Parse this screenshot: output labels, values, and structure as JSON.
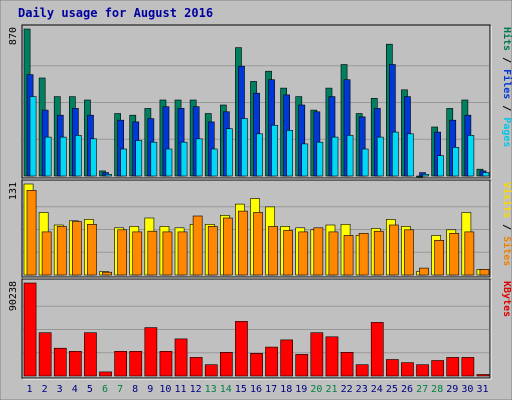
{
  "chart_data": {
    "type": "bar",
    "title": "Daily usage for August 2016",
    "categories": [
      "1",
      "2",
      "3",
      "4",
      "5",
      "6",
      "7",
      "8",
      "9",
      "10",
      "11",
      "12",
      "13",
      "14",
      "15",
      "16",
      "17",
      "18",
      "19",
      "20",
      "21",
      "22",
      "23",
      "24",
      "25",
      "26",
      "27",
      "28",
      "29",
      "30",
      "31"
    ],
    "weekend_days": [
      "6",
      "7",
      "13",
      "14",
      "20",
      "21",
      "27",
      "28"
    ],
    "panels": [
      {
        "name": "hits-files-pages",
        "ymax_label": "870",
        "ylim": [
          0,
          870
        ],
        "side_labels": [
          {
            "text": "Pages",
            "color": "#00c8e8"
          },
          {
            "text": " / ",
            "color": "#000000"
          },
          {
            "text": "Files",
            "color": "#0038d8"
          },
          {
            "text": " / ",
            "color": "#000000"
          },
          {
            "text": "Hits",
            "color": "#007850"
          }
        ],
        "series": [
          {
            "name": "Hits",
            "color": "#008060",
            "values": [
              870,
              580,
              470,
              470,
              450,
              30,
              370,
              360,
              400,
              450,
              450,
              450,
              370,
              420,
              760,
              560,
              620,
              520,
              470,
              390,
              520,
              660,
              370,
              460,
              780,
              510,
              0,
              290,
              400,
              450,
              40
            ]
          },
          {
            "name": "Files",
            "color": "#0038d8",
            "values": [
              600,
              390,
              360,
              400,
              360,
              20,
              330,
              320,
              340,
              410,
              400,
              410,
              320,
              380,
              650,
              490,
              570,
              480,
              420,
              380,
              470,
              570,
              350,
              400,
              660,
              470,
              20,
              260,
              330,
              360,
              30
            ]
          },
          {
            "name": "Pages",
            "color": "#00d8f8",
            "values": [
              470,
              230,
              230,
              240,
              220,
              10,
              160,
              210,
              200,
              160,
              200,
              220,
              160,
              280,
              340,
              250,
              300,
              270,
              190,
              200,
              230,
              240,
              160,
              230,
              260,
              250,
              10,
              120,
              170,
              240,
              20
            ]
          }
        ]
      },
      {
        "name": "visits-sites",
        "ymax_label": "131",
        "ylim": [
          0,
          131
        ],
        "side_labels": [
          {
            "text": "Sites",
            "color": "#f08000"
          },
          {
            "text": " / ",
            "color": "#000000"
          },
          {
            "text": "Visits",
            "color": "#f8d800"
          }
        ],
        "series": [
          {
            "name": "Visits",
            "color": "#ffff00",
            "values": [
              131,
              90,
              72,
              78,
              80,
              5,
              68,
              70,
              82,
              70,
              68,
              73,
              73,
              86,
              102,
              110,
              98,
              70,
              68,
              65,
              72,
              73,
              57,
              67,
              80,
              70,
              5,
              57,
              65,
              90,
              8
            ]
          },
          {
            "name": "Sites",
            "color": "#ff8800",
            "values": [
              122,
              62,
              70,
              77,
              73,
              4,
              65,
              62,
              63,
              62,
              62,
              85,
              70,
              82,
              92,
              90,
              70,
              64,
              62,
              68,
              62,
              57,
              60,
              63,
              72,
              65,
              10,
              50,
              60,
              62,
              8
            ]
          }
        ]
      },
      {
        "name": "kbytes",
        "ymax_label": "90238",
        "ylim": [
          0,
          90238
        ],
        "side_labels": [
          {
            "text": "KBytes",
            "color": "#e00000"
          }
        ],
        "series": [
          {
            "name": "KBytes",
            "color": "#ff0000",
            "values": [
              90238,
              42000,
              27000,
              24000,
              42000,
              4000,
              24000,
              24000,
              47000,
              24000,
              36000,
              18000,
              11000,
              23000,
              53000,
              22000,
              28000,
              35000,
              21000,
              42000,
              38000,
              23000,
              11000,
              52000,
              16000,
              13000,
              11000,
              15000,
              18000,
              18000,
              1500
            ]
          }
        ]
      }
    ]
  },
  "colors": {
    "background": "#c0c0c0",
    "plot_background": "#c0c0c0",
    "title": "#0000a0",
    "weekday_label": "#000080",
    "weekend_label": "#008040",
    "grid": "#999999"
  }
}
